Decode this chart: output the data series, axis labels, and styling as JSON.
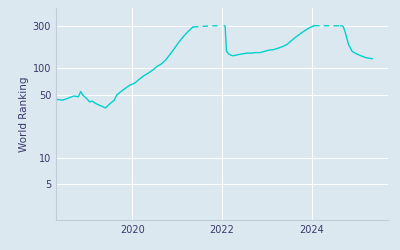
{
  "ylabel": "World Ranking",
  "background_color": "#dce8f0",
  "line_color": "#00d0cc",
  "grid_color": "#ffffff",
  "yticks": [
    5,
    10,
    50,
    100,
    300
  ],
  "ytick_labels": [
    "5",
    "10",
    "50",
    "100",
    "300"
  ],
  "ylim": [
    2.0,
    480
  ],
  "xlim": [
    2018.3,
    2025.7
  ],
  "xticks": [
    2020,
    2022,
    2024
  ],
  "segments": [
    {
      "x": [
        2018.3,
        2018.45,
        2018.6,
        2018.7,
        2018.8,
        2018.85,
        2018.9,
        2019.0,
        2019.05,
        2019.1,
        2019.2,
        2019.3,
        2019.35,
        2019.4,
        2019.45,
        2019.5,
        2019.55,
        2019.6,
        2019.65,
        2019.75,
        2019.85,
        2019.95,
        2020.05,
        2020.15,
        2020.25,
        2020.35,
        2020.45,
        2020.55,
        2020.65,
        2020.75,
        2020.85,
        2020.95,
        2021.05,
        2021.15,
        2021.25,
        2021.35
      ],
      "y": [
        45,
        44,
        47,
        49,
        48,
        55,
        50,
        45,
        42,
        43,
        40,
        38,
        37,
        36,
        38,
        40,
        42,
        44,
        50,
        55,
        60,
        65,
        68,
        75,
        82,
        88,
        95,
        105,
        112,
        125,
        145,
        170,
        200,
        230,
        260,
        290
      ],
      "style": "solid"
    },
    {
      "x": [
        2021.35,
        2021.55,
        2021.75,
        2021.9
      ],
      "y": [
        290,
        295,
        298,
        300
      ],
      "style": "dashed"
    },
    {
      "x": [
        2022.05,
        2022.07,
        2022.1,
        2022.15,
        2022.2,
        2022.25,
        2022.3,
        2022.35,
        2022.45,
        2022.55,
        2022.65,
        2022.75,
        2022.85,
        2022.95,
        2023.05,
        2023.15,
        2023.25,
        2023.35,
        2023.45,
        2023.55,
        2023.65,
        2023.75,
        2023.85,
        2023.95,
        2024.05
      ],
      "y": [
        300,
        295,
        155,
        145,
        140,
        138,
        140,
        142,
        145,
        148,
        148,
        150,
        150,
        155,
        160,
        162,
        168,
        175,
        185,
        205,
        225,
        245,
        265,
        285,
        300
      ],
      "style": "solid"
    },
    {
      "x": [
        2024.05,
        2024.25,
        2024.5,
        2024.65
      ],
      "y": [
        300,
        300,
        299,
        300
      ],
      "style": "dashed"
    },
    {
      "x": [
        2024.65,
        2024.7,
        2024.75,
        2024.82,
        2024.9,
        2025.0,
        2025.1,
        2025.2,
        2025.35
      ],
      "y": [
        300,
        295,
        250,
        185,
        155,
        145,
        138,
        132,
        128
      ],
      "style": "solid"
    }
  ]
}
